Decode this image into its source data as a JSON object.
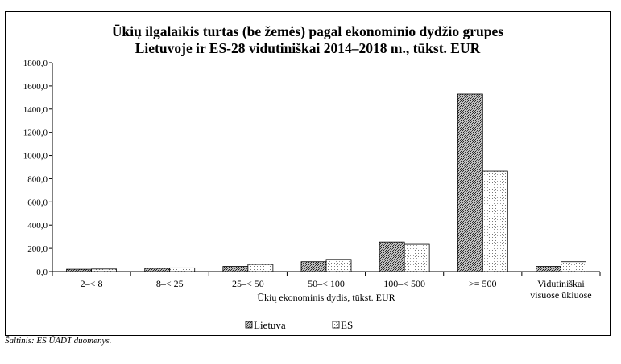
{
  "chart_data": {
    "type": "bar",
    "title": [
      "Ūkių ilgalaikis turtas (be žemės) pagal ekonominio dydžio grupes",
      "Lietuvoje ir ES-28 vidutiniškai 2014–2018 m., tūkst. EUR"
    ],
    "xlabel": "Ūkių ekonominis dydis, tūkst. EUR",
    "ylabel": "",
    "ylim": [
      0,
      1800
    ],
    "yticks": [
      "0,0",
      "200,0",
      "400,0",
      "600,0",
      "800,0",
      "1000,0",
      "1200,0",
      "1400,0",
      "1600,0",
      "1800,0"
    ],
    "categories": [
      [
        "2–< 8"
      ],
      [
        "8–< 25"
      ],
      [
        "25–< 50"
      ],
      [
        "50–< 100"
      ],
      [
        "100–< 500"
      ],
      [
        ">= 500"
      ],
      [
        "Vidutiniškai",
        "visuose ūkiuose"
      ]
    ],
    "series": [
      {
        "name": "Lietuva",
        "values": [
          20,
          28,
          45,
          85,
          255,
          1530,
          45
        ],
        "pattern": "dense-dots",
        "color": "#808080"
      },
      {
        "name": "ES",
        "values": [
          22,
          32,
          62,
          105,
          235,
          865,
          85
        ],
        "pattern": "sparse-dots",
        "color": "#ffffff"
      }
    ],
    "grid": false,
    "legend_position": "bottom"
  },
  "source_note": "Šaltinis: ES ŪADT duomenys."
}
